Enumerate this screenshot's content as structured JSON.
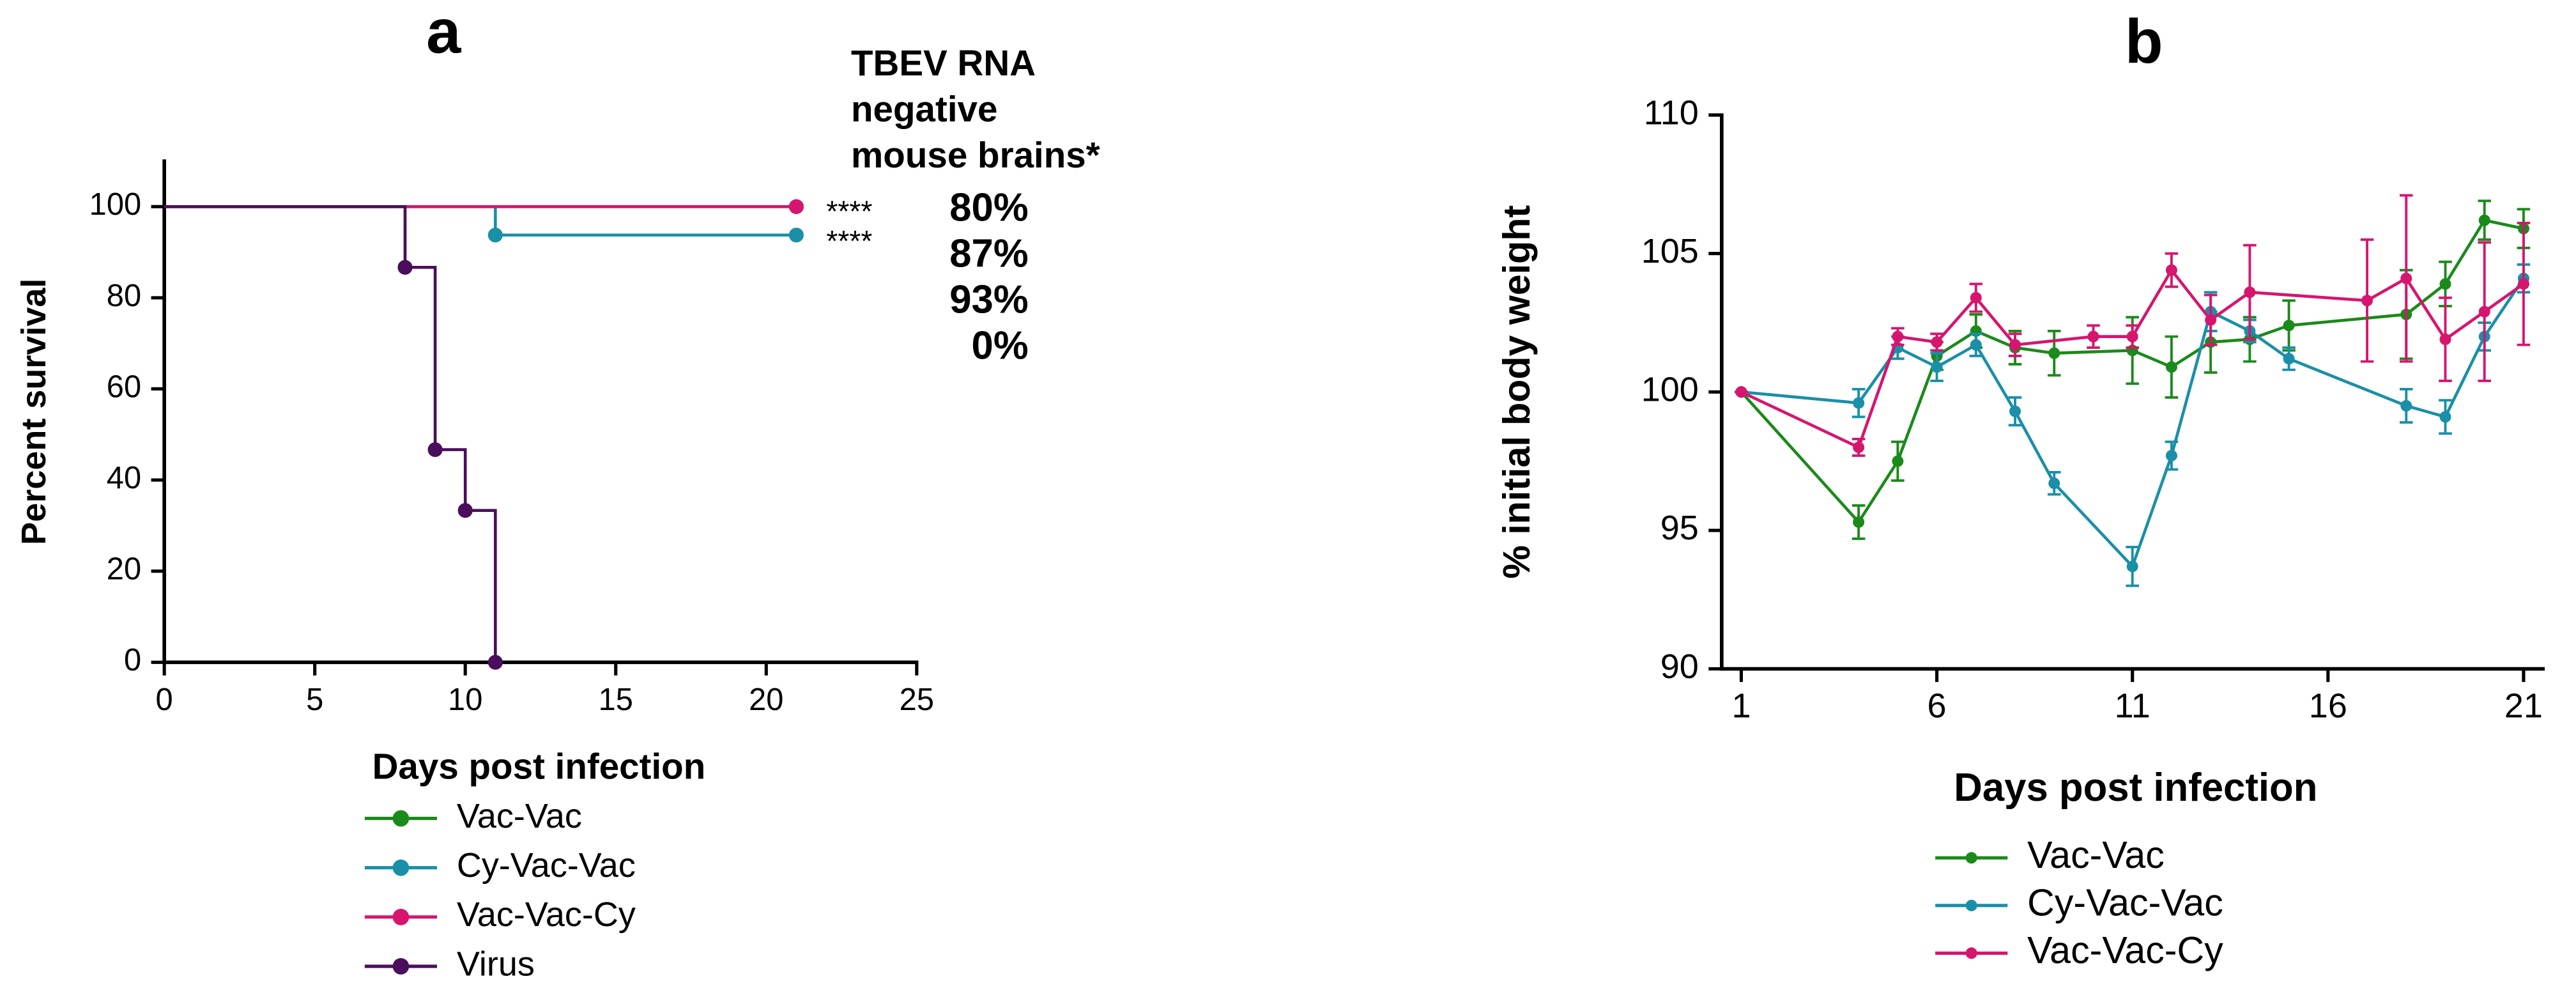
{
  "chart_data": [
    {
      "type": "step",
      "title": "a",
      "x_label": "Days post infection",
      "y_label": "Percent survival",
      "xlim": [
        0,
        25
      ],
      "xticks": [
        0,
        5,
        10,
        15,
        20,
        25
      ],
      "ylim": [
        0,
        110
      ],
      "yticks": [
        0,
        20,
        40,
        60,
        80,
        100
      ],
      "series": [
        {
          "name": "Vac-Vac",
          "color": "#1a8a1a",
          "x": [
            0,
            21
          ],
          "values": [
            100,
            100
          ]
        },
        {
          "name": "Cy-Vac-Vac",
          "color": "#1a8fa8",
          "x": [
            0,
            11,
            21
          ],
          "values": [
            100,
            93.75,
            93.75
          ]
        },
        {
          "name": "Vac-Vac-Cy",
          "color": "#d6156e",
          "x": [
            0,
            21
          ],
          "values": [
            100,
            100
          ]
        },
        {
          "name": "Virus",
          "color": "#4a0e5c",
          "x": [
            0,
            8,
            9,
            10,
            11
          ],
          "values": [
            100,
            86.67,
            46.67,
            33.33,
            0
          ]
        }
      ],
      "annotations": {
        "header": [
          "TBEV RNA",
          "negative",
          "mouse brains*"
        ],
        "significance": [
          "****",
          "****"
        ],
        "percentages": [
          {
            "text": "80%",
            "color": "#1a8a1a"
          },
          {
            "text": "87%",
            "color": "#d6156e"
          },
          {
            "text": "93%",
            "color": "#1a8fa8"
          },
          {
            "text": "0%",
            "color": "#8a1ab0"
          }
        ]
      }
    },
    {
      "type": "line",
      "title": "b",
      "x_label": "Days post infection",
      "y_label": "% initial body weight",
      "xlim": [
        0.5,
        21.5
      ],
      "xticks": [
        1,
        6,
        11,
        16,
        21
      ],
      "ylim": [
        90,
        110
      ],
      "yticks": [
        90,
        95,
        100,
        105,
        110
      ],
      "series": [
        {
          "name": "Vac-Vac",
          "color": "#1a8a1a",
          "x": [
            1,
            4,
            5,
            6,
            7,
            8,
            9,
            11,
            12,
            13,
            14,
            15,
            18,
            19,
            20,
            21
          ],
          "values": [
            100,
            95.3,
            97.5,
            101.3,
            102.2,
            101.6,
            101.4,
            101.5,
            100.9,
            101.8,
            101.9,
            102.4,
            102.8,
            103.9,
            106.2,
            105.9
          ],
          "errors": [
            0,
            0.6,
            0.7,
            0.5,
            0.6,
            0.6,
            0.8,
            1.2,
            1.1,
            1.1,
            0.8,
            0.9,
            1.6,
            0.8,
            0.7,
            0.7
          ]
        },
        {
          "name": "Cy-Vac-Vac",
          "color": "#1a8fa8",
          "x": [
            1,
            4,
            5,
            6,
            7,
            8,
            9,
            11,
            12,
            13,
            14,
            15,
            18,
            19,
            20,
            21
          ],
          "values": [
            100,
            99.6,
            101.6,
            100.9,
            101.7,
            99.3,
            96.7,
            93.7,
            97.7,
            102.9,
            102.2,
            101.2,
            99.5,
            99.1,
            102.0,
            104.1
          ],
          "errors": [
            0,
            0.5,
            0.4,
            0.5,
            0.4,
            0.5,
            0.4,
            0.7,
            0.5,
            0.7,
            0.4,
            0.4,
            0.6,
            0.6,
            0.5,
            0.5
          ]
        },
        {
          "name": "Vac-Vac-Cy",
          "color": "#d6156e",
          "x": [
            1,
            4,
            5,
            6,
            7,
            8,
            10,
            11,
            12,
            13,
            14,
            17,
            18,
            19,
            20,
            21
          ],
          "values": [
            100,
            98.0,
            102.0,
            101.8,
            103.4,
            101.7,
            102.0,
            102.0,
            104.4,
            102.6,
            103.6,
            103.3,
            104.1,
            101.9,
            102.9,
            103.9
          ],
          "errors": [
            0,
            0.3,
            0.3,
            0.3,
            0.5,
            0.4,
            0.4,
            0.4,
            0.6,
            0.9,
            1.7,
            2.2,
            3.0,
            1.5,
            2.5,
            2.2
          ]
        }
      ]
    }
  ]
}
